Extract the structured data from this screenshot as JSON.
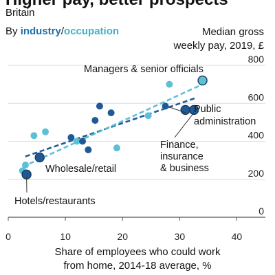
{
  "chart_data": {
    "type": "scatter",
    "title": "Higher pay, better prospects",
    "subtitle": "Britain",
    "legend": {
      "prefix": "By ",
      "separator": "/",
      "items": [
        {
          "label": "industry",
          "color": "#1f6faa"
        },
        {
          "label": "occupation",
          "color": "#3fb3c8"
        }
      ]
    },
    "ylabel": [
      "Median gross",
      "weekly pay, 2019, £"
    ],
    "xlabel": [
      "Share of employees who could work",
      "from home, 2014-18 average, %"
    ],
    "xlim": [
      0,
      45
    ],
    "ylim": [
      0,
      800
    ],
    "xticks": [
      0,
      10,
      20,
      30,
      40
    ],
    "yticks": [
      0,
      200,
      400,
      600,
      800
    ],
    "grid": "horizontal",
    "series": [
      {
        "name": "industry",
        "color": "#1f5a96",
        "points": [
          {
            "x": 3.2,
            "y": 225
          },
          {
            "x": 5.5,
            "y": 315
          },
          {
            "x": 11.0,
            "y": 420
          },
          {
            "x": 13.0,
            "y": 400
          },
          {
            "x": 14.0,
            "y": 355
          },
          {
            "x": 15.2,
            "y": 510
          },
          {
            "x": 16.0,
            "y": 585
          },
          {
            "x": 18.0,
            "y": 550
          },
          {
            "x": 27.5,
            "y": 585
          },
          {
            "x": 31.0,
            "y": 565
          },
          {
            "x": 32.5,
            "y": 565
          }
        ],
        "trend": [
          {
            "x": 3,
            "y": 320
          },
          {
            "x": 33,
            "y": 630
          }
        ]
      },
      {
        "name": "occupation",
        "color": "#5cc0d6",
        "points": [
          {
            "x": 2.5,
            "y": 245
          },
          {
            "x": 3.0,
            "y": 275
          },
          {
            "x": 4.5,
            "y": 430
          },
          {
            "x": 6.5,
            "y": 450
          },
          {
            "x": 12.0,
            "y": 400
          },
          {
            "x": 19.0,
            "y": 365
          },
          {
            "x": 24.5,
            "y": 535
          },
          {
            "x": 28.2,
            "y": 700
          },
          {
            "x": 34.0,
            "y": 720
          }
        ],
        "trend": [
          {
            "x": 2.5,
            "y": 265
          },
          {
            "x": 34,
            "y": 700
          }
        ]
      }
    ],
    "annotations": [
      {
        "text": [
          "Managers & senior officials"
        ]
      },
      {
        "text": [
          "Public",
          "administration"
        ]
      },
      {
        "text": [
          "Finance,",
          "insurance",
          "& business"
        ]
      },
      {
        "text": [
          "Wholesale/retail"
        ]
      },
      {
        "text": [
          "Hotels/restaurants"
        ]
      }
    ]
  }
}
